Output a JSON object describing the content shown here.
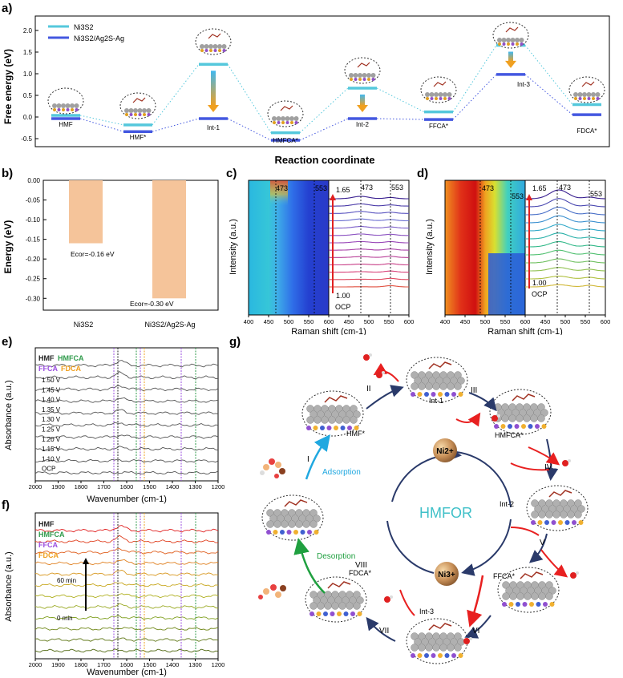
{
  "panel_a": {
    "letter": "a)",
    "ylabel": "Free energy (eV)",
    "xlabel": "Reaction coordinate",
    "legend": [
      "Ni3S2",
      "Ni3S2/Ag2S-Ag"
    ],
    "yticks": [
      "2.0",
      "1.5",
      "1.0",
      "0.5",
      "0.0",
      "-0.5"
    ],
    "states": [
      "HMF",
      "HMF*",
      "Int-1",
      "HMFCA*",
      "Int-2",
      "FFCA*",
      "Int-3",
      "FDCA*"
    ],
    "colors": {
      "ni3s2": "#55c8dc",
      "hetero": "#4458e0",
      "arrow_top": "#3fb8f0",
      "arrow_bottom": "#f0a020"
    }
  },
  "chart_data": [
    {
      "type": "line",
      "title": "",
      "xlabel": "Reaction coordinate",
      "ylabel": "Free energy (eV)",
      "ylim": [
        -0.5,
        2.3
      ],
      "categories": [
        "HMF",
        "HMF*",
        "Int-1",
        "HMFCA*",
        "Int-2",
        "FFCA*",
        "Int-3",
        "FDCA*"
      ],
      "series": [
        {
          "name": "Ni3S2",
          "values": [
            0.0,
            -0.22,
            1.18,
            -0.4,
            0.63,
            0.08,
            1.62,
            0.25
          ]
        },
        {
          "name": "Ni3S2/Ag2S-Ag",
          "values": [
            0.0,
            -0.3,
            0.0,
            -0.5,
            0.0,
            -0.02,
            1.02,
            0.09
          ]
        }
      ]
    },
    {
      "type": "bar",
      "title": "",
      "xlabel": "",
      "ylabel": "Energy (eV)",
      "ylim": [
        -0.33,
        0.0
      ],
      "categories": [
        "Ni3S2",
        "Ni3S2/Ag2S-Ag"
      ],
      "values": [
        -0.16,
        -0.3
      ]
    }
  ],
  "panel_b": {
    "letter": "b)",
    "ylabel": "Energy (eV)",
    "yticks": [
      "0.00",
      "-0.05",
      "-0.10",
      "-0.15",
      "-0.20",
      "-0.25",
      "-0.30"
    ],
    "categories": [
      "Ni3S2",
      "Ni3S2/Ag2S-Ag"
    ],
    "labels": [
      "Ecor=-0.16 eV",
      "Ecor=-0.30 eV"
    ],
    "bar_color": "#f5c49a"
  },
  "panel_c": {
    "letter": "c)",
    "ylabel": "Intensity (a.u.)",
    "xlabel": "Raman shift (cm-1)",
    "peaks": [
      "473",
      "553"
    ],
    "top_label": "1.65",
    "bottom_label": "1.00",
    "ocp": "OCP",
    "xticks": [
      "400",
      "450",
      "500",
      "550",
      "600",
      "450",
      "500",
      "550",
      "600"
    ]
  },
  "panel_d": {
    "letter": "d)",
    "ylabel": "Intensity (a.u.)",
    "xlabel": "Raman shift (cm-1)",
    "peaks": [
      "473",
      "553"
    ],
    "top_label": "1.65",
    "bottom_label": "1.00",
    "ocp": "OCP",
    "xticks": [
      "400",
      "450",
      "500",
      "550",
      "600",
      "450",
      "500",
      "550",
      "600"
    ]
  },
  "panel_e": {
    "letter": "e)",
    "ylabel": "Absorbance (a.u.)",
    "xlabel": "Wavenumber (cm-1)",
    "legend": [
      "HMF",
      "HMFCA",
      "FFCA",
      "FDCA"
    ],
    "legend_colors": [
      "#222222",
      "#2e9a4a",
      "#9a4ee0",
      "#f0a020"
    ],
    "potentials": [
      "1.50 V",
      "1.45 V",
      "1.40 V",
      "1.35 V",
      "1.30 V",
      "1.25 V",
      "1.20 V",
      "1.15 V",
      "1.10 V",
      "OCP"
    ],
    "markers": [
      "1660",
      "1562",
      "1320",
      "1280"
    ],
    "xticks": [
      "2000",
      "1900",
      "1800",
      "1700",
      "1600",
      "1500",
      "1400",
      "1300",
      "1200"
    ]
  },
  "panel_f": {
    "letter": "f)",
    "ylabel": "Absorbance (a.u.)",
    "xlabel": "Wavenumber (cm-1)",
    "legend": [
      "HMF",
      "HMFCA",
      "FFCA",
      "FDCA"
    ],
    "time_top": "60 min",
    "time_bottom": "0 min",
    "markers": [
      "1660",
      "1562",
      "1320",
      "1280"
    ],
    "xticks": [
      "2000",
      "1900",
      "1800",
      "1700",
      "1600",
      "1500",
      "1400",
      "1300",
      "1200"
    ]
  },
  "panel_g": {
    "letter": "g)",
    "center": "HMFOR",
    "ni2": "Ni2+",
    "ni3": "Ni3+",
    "adsorption": "Adsorption",
    "desorption": "Desorption",
    "states": [
      "HMF*",
      "Int-1",
      "HMFCA*",
      "Int-2",
      "FFCA*",
      "Int-3",
      "FDCA*"
    ],
    "steps": [
      "I",
      "II",
      "III",
      "IV",
      "V",
      "VI",
      "VII",
      "VIII"
    ],
    "center_color": "#3fc0c8"
  }
}
